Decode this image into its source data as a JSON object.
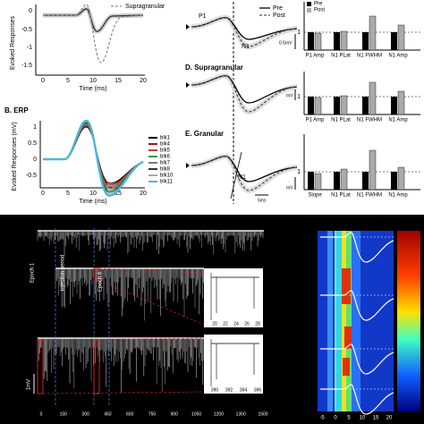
{
  "panel_a": {
    "legend": "Supragranular",
    "y_label": "Evoked Responses",
    "y_ticks": [
      "0",
      "-0.5",
      "-1",
      "-1.5"
    ],
    "x_ticks": [
      "0",
      "5",
      "10",
      "15",
      "20"
    ],
    "x_label": "Time (ms)"
  },
  "panel_b": {
    "title": "B. ERP",
    "y_label": "Evoked Responses (mV)",
    "y_ticks": [
      "1",
      "0.5",
      "0",
      "-0.5"
    ],
    "x_ticks": [
      "0",
      "5",
      "10",
      "15",
      "20"
    ],
    "x_label": "Time (ms)",
    "legend": [
      "blk1",
      "blk4",
      "blk5",
      "blk6",
      "blk7",
      "blk8",
      "blk10",
      "blk11"
    ]
  },
  "panel_c": {
    "legend": [
      "Pre",
      "Post"
    ],
    "peak_labels": [
      "P1",
      "N1"
    ],
    "scale": "0.5mV"
  },
  "panel_d": {
    "title": "D. Supragranular",
    "scale": "mV"
  },
  "panel_e": {
    "title": "E. Granular",
    "peak_label": "N1",
    "scale_y": "mV",
    "scale_x": "5ms"
  },
  "bars_top": {
    "legend": [
      "Pre",
      "Post"
    ],
    "y_tick": "1",
    "x_labels": [
      "P1 Amp",
      "N1 PLat",
      "N1 FWHM",
      "N1 Amp"
    ]
  },
  "bars_middle": {
    "y_tick": "1",
    "x_labels": [
      "P1 Amp",
      "N1 PLat",
      "N1 FWHM",
      "N1 Amp"
    ]
  },
  "bars_bottom": {
    "y_tick": "1",
    "x_labels": [
      "Slope",
      "N1 PLat",
      "N1 FWHM",
      "N1 Amp"
    ]
  },
  "recording": {
    "labels": [
      "Epoch 1",
      "Injection period",
      "Epoch 4"
    ],
    "scale": "1mV",
    "inset_top_ticks": [
      "20",
      "22",
      "24",
      "26",
      "28"
    ],
    "inset_bottom_ticks": [
      "390",
      "392",
      "394",
      "396"
    ],
    "x_ticks": [
      "0",
      "150",
      "300",
      "450",
      "600",
      "750",
      "900",
      "1050",
      "1200",
      "1350",
      "1500"
    ]
  },
  "heatmap": {
    "x_ticks": [
      "-5",
      "0",
      "5",
      "10",
      "15",
      "20"
    ]
  }
}
